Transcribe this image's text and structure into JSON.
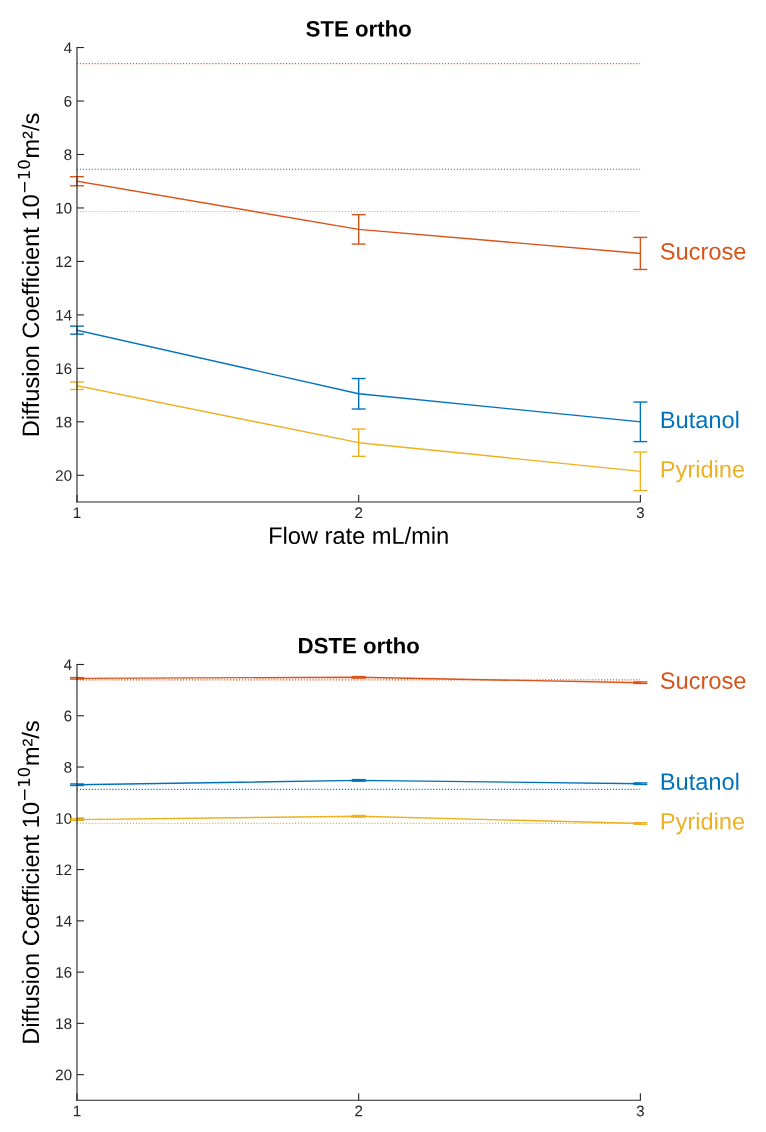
{
  "chart_data": [
    {
      "type": "line",
      "title": "STE ortho",
      "xlabel": "Flow rate mL/min",
      "ylabel": "Diffusion Coefficient 10$^{−10}$m²/s",
      "x": [
        1,
        2,
        3
      ],
      "xlim": [
        1,
        3
      ],
      "xticks": [
        1,
        2,
        3
      ],
      "ylim": [
        21,
        4
      ],
      "yticks": [
        4,
        6,
        8,
        10,
        12,
        14,
        16,
        18,
        20
      ],
      "grid": false,
      "legend": false,
      "marker": "none",
      "series": [
        {
          "name": "Sucrose",
          "color": "#d95319",
          "values": [
            9.0,
            10.8,
            11.7
          ],
          "errors": [
            0.17,
            0.55,
            0.6
          ]
        },
        {
          "name": "Butanol",
          "color": "#0072bd",
          "values": [
            14.57,
            16.95,
            18.0
          ],
          "errors": [
            0.15,
            0.57,
            0.74
          ]
        },
        {
          "name": "Pyridine",
          "color": "#edb120",
          "values": [
            16.65,
            18.78,
            19.85
          ],
          "errors": [
            0.14,
            0.51,
            0.72
          ]
        }
      ],
      "ref_lines": [
        {
          "axis": "y",
          "value": 4.6,
          "color": "#d95319",
          "line_style": "dotted"
        },
        {
          "axis": "y",
          "value": 8.55,
          "color": "#0072bd",
          "line_style": "dotted"
        },
        {
          "axis": "y",
          "value": 10.13,
          "color": "#edb120",
          "line_style": "dotted"
        }
      ]
    },
    {
      "type": "line",
      "title": "DSTE ortho",
      "ylabel": "Diffusion Coefficient 10$^{−10}$m²/s",
      "x": [
        1,
        2,
        3
      ],
      "xlim": [
        1,
        3
      ],
      "xticks": [
        1,
        2,
        3
      ],
      "ylim": [
        21,
        4
      ],
      "yticks": [
        4,
        6,
        8,
        10,
        12,
        14,
        16,
        18,
        20
      ],
      "grid": false,
      "legend": false,
      "marker": "none",
      "series": [
        {
          "name": "Sucrose",
          "color": "#d95319",
          "values": [
            4.54,
            4.5,
            4.71
          ],
          "errors": [
            0.03,
            0.03,
            0.03
          ]
        },
        {
          "name": "Butanol",
          "color": "#0072bd",
          "values": [
            8.69,
            8.52,
            8.65
          ],
          "errors": [
            0.03,
            0.03,
            0.03
          ]
        },
        {
          "name": "Pyridine",
          "color": "#edb120",
          "values": [
            10.05,
            9.92,
            10.2
          ],
          "errors": [
            0.03,
            0.03,
            0.03
          ]
        }
      ],
      "ref_lines": [
        {
          "axis": "y",
          "value": 4.6,
          "color": "#d95319",
          "line_style": "dotted"
        },
        {
          "axis": "y",
          "value": 8.87,
          "color": "#0072bd",
          "line_style": "dotted"
        },
        {
          "axis": "y",
          "value": 10.2,
          "color": "#edb120",
          "line_style": "dotted"
        }
      ]
    }
  ]
}
